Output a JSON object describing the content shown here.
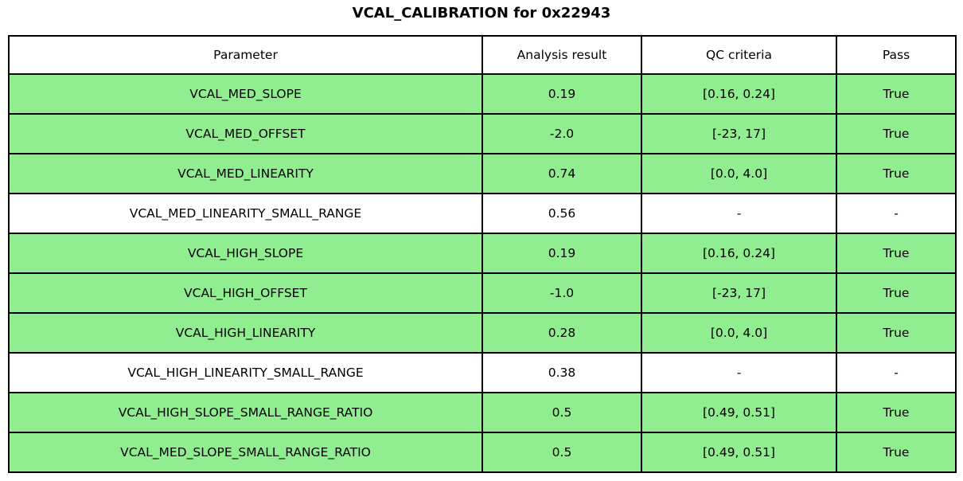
{
  "title": "VCAL_CALIBRATION for 0x22943",
  "colors": {
    "row_highlight": "#90EE90",
    "row_plain": "#FFFFFF",
    "border": "#000000",
    "text": "#000000"
  },
  "chart_data": {
    "type": "table",
    "title": "VCAL_CALIBRATION for 0x22943",
    "columns": [
      "Parameter",
      "Analysis result",
      "QC criteria",
      "Pass"
    ],
    "rows": [
      {
        "parameter": "VCAL_MED_SLOPE",
        "result": "0.19",
        "criteria": "[0.16, 0.24]",
        "pass": "True",
        "highlight": true
      },
      {
        "parameter": "VCAL_MED_OFFSET",
        "result": "-2.0",
        "criteria": "[-23, 17]",
        "pass": "True",
        "highlight": true
      },
      {
        "parameter": "VCAL_MED_LINEARITY",
        "result": "0.74",
        "criteria": "[0.0, 4.0]",
        "pass": "True",
        "highlight": true
      },
      {
        "parameter": "VCAL_MED_LINEARITY_SMALL_RANGE",
        "result": "0.56",
        "criteria": "-",
        "pass": "-",
        "highlight": false
      },
      {
        "parameter": "VCAL_HIGH_SLOPE",
        "result": "0.19",
        "criteria": "[0.16, 0.24]",
        "pass": "True",
        "highlight": true
      },
      {
        "parameter": "VCAL_HIGH_OFFSET",
        "result": "-1.0",
        "criteria": "[-23, 17]",
        "pass": "True",
        "highlight": true
      },
      {
        "parameter": "VCAL_HIGH_LINEARITY",
        "result": "0.28",
        "criteria": "[0.0, 4.0]",
        "pass": "True",
        "highlight": true
      },
      {
        "parameter": "VCAL_HIGH_LINEARITY_SMALL_RANGE",
        "result": "0.38",
        "criteria": "-",
        "pass": "-",
        "highlight": false
      },
      {
        "parameter": "VCAL_HIGH_SLOPE_SMALL_RANGE_RATIO",
        "result": "0.5",
        "criteria": "[0.49, 0.51]",
        "pass": "True",
        "highlight": true
      },
      {
        "parameter": "VCAL_MED_SLOPE_SMALL_RANGE_RATIO",
        "result": "0.5",
        "criteria": "[0.49, 0.51]",
        "pass": "True",
        "highlight": true
      }
    ]
  }
}
